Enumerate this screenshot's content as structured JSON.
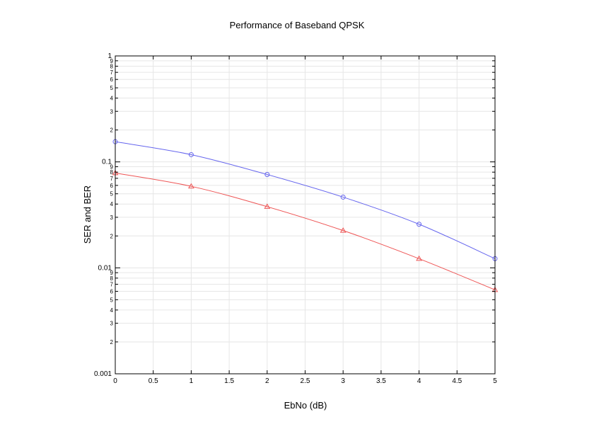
{
  "chart_data": {
    "type": "line",
    "title": "Performance of Baseband QPSK",
    "xlabel": "EbNo (dB)",
    "ylabel": "SER and BER",
    "xlim": [
      0,
      5
    ],
    "ylim": [
      0.001,
      1
    ],
    "yscale": "log",
    "grid": true,
    "x_ticks": [
      "0",
      "0.5",
      "1",
      "1.5",
      "2",
      "2.5",
      "3",
      "3.5",
      "4",
      "4.5",
      "5"
    ],
    "y_major_ticks": [
      "0.001",
      "0.01",
      "0.1",
      "1"
    ],
    "y_minor_tick_labels": [
      "2",
      "3",
      "4",
      "5",
      "6",
      "7",
      "8",
      "9"
    ],
    "x": [
      0,
      1,
      2,
      3,
      4,
      5
    ],
    "series": [
      {
        "color": "#6666ee",
        "marker": "circle",
        "values": [
          0.155,
          0.117,
          0.076,
          0.0465,
          0.0258,
          0.0122
        ]
      },
      {
        "color": "#ee5555",
        "marker": "triangle",
        "values": [
          0.0785,
          0.0588,
          0.0378,
          0.0225,
          0.0122,
          0.0062
        ]
      }
    ]
  }
}
